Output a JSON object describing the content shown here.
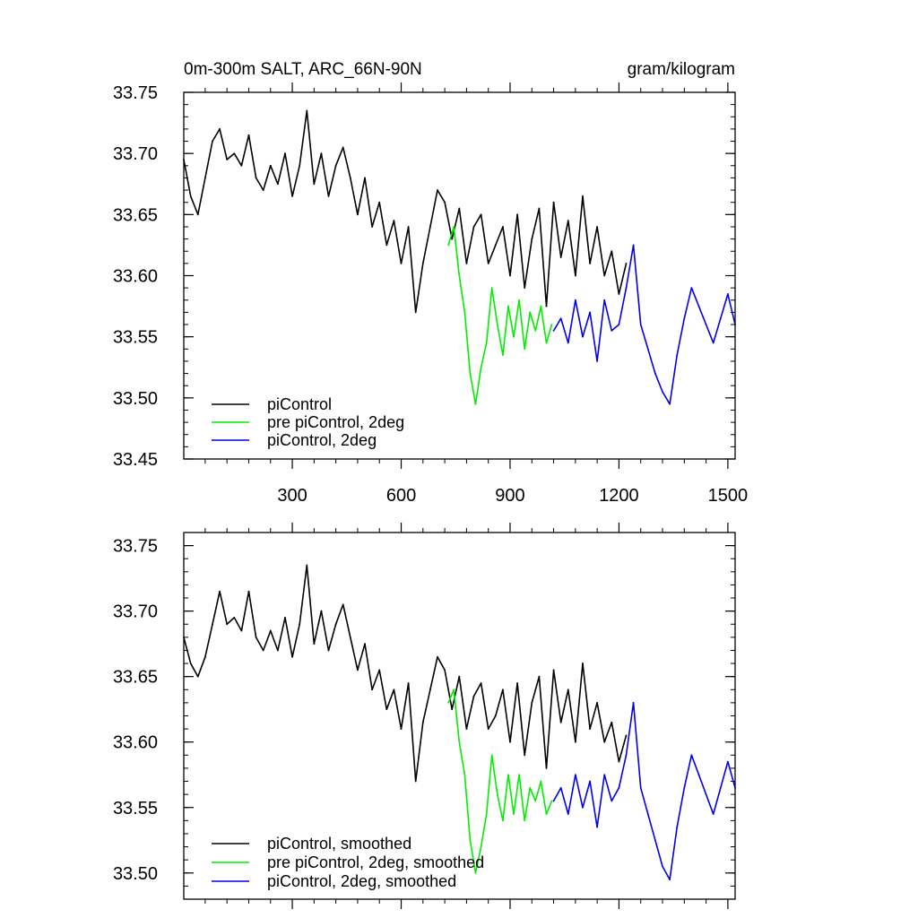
{
  "chart_data": [
    {
      "type": "line",
      "title_left": "0m-300m SALT, ARC_66N-90N",
      "title_right": "gram/kilogram",
      "xlabel": "",
      "ylabel": "",
      "xlim": [
        1,
        1520
      ],
      "ylim": [
        33.45,
        33.75
      ],
      "xticks": [
        300,
        600,
        900,
        1200,
        1500
      ],
      "xtick_labels": [
        "300",
        "600",
        "900",
        "1200",
        "1500"
      ],
      "yticks": [
        33.45,
        33.5,
        33.55,
        33.6,
        33.65,
        33.7,
        33.75
      ],
      "ytick_labels": [
        "33.45",
        "33.50",
        "33.55",
        "33.60",
        "33.65",
        "33.70",
        "33.75"
      ],
      "legend_position": "bottom-left",
      "series": [
        {
          "name": "piControl",
          "color": "#000000",
          "x": [
            1,
            20,
            40,
            60,
            80,
            100,
            120,
            140,
            160,
            180,
            200,
            220,
            240,
            260,
            280,
            300,
            320,
            340,
            360,
            380,
            400,
            420,
            440,
            460,
            480,
            500,
            520,
            540,
            560,
            580,
            600,
            620,
            640,
            660,
            680,
            700,
            720,
            740,
            760,
            780,
            800,
            820,
            840,
            860,
            880,
            900,
            920,
            940,
            960,
            980,
            1000,
            1020,
            1040,
            1060,
            1080,
            1100,
            1120,
            1140,
            1160,
            1180,
            1200,
            1220
          ],
          "values": [
            33.695,
            33.665,
            33.65,
            33.68,
            33.71,
            33.72,
            33.695,
            33.7,
            33.69,
            33.715,
            33.68,
            33.67,
            33.69,
            33.675,
            33.7,
            33.665,
            33.69,
            33.735,
            33.675,
            33.7,
            33.665,
            33.69,
            33.705,
            33.68,
            33.65,
            33.68,
            33.64,
            33.66,
            33.625,
            33.645,
            33.61,
            33.64,
            33.57,
            33.61,
            33.64,
            33.67,
            33.66,
            33.63,
            33.655,
            33.61,
            33.64,
            33.65,
            33.61,
            33.625,
            33.64,
            33.6,
            33.65,
            33.59,
            33.63,
            33.655,
            33.575,
            33.66,
            33.615,
            33.645,
            33.6,
            33.665,
            33.61,
            33.64,
            33.6,
            33.62,
            33.585,
            33.61
          ]
        },
        {
          "name": "pre piControl, 2deg",
          "color": "#00ee00",
          "x": [
            730,
            745,
            760,
            775,
            790,
            805,
            820,
            835,
            850,
            865,
            880,
            895,
            910,
            925,
            940,
            955,
            970,
            985,
            1000,
            1015
          ],
          "values": [
            33.625,
            33.64,
            33.6,
            33.57,
            33.52,
            33.495,
            33.525,
            33.545,
            33.59,
            33.56,
            33.535,
            33.575,
            33.55,
            33.58,
            33.54,
            33.57,
            33.555,
            33.575,
            33.545,
            33.56
          ]
        },
        {
          "name": "piControl, 2deg",
          "color": "#0000ee",
          "x": [
            1020,
            1040,
            1060,
            1080,
            1100,
            1120,
            1140,
            1160,
            1180,
            1200,
            1220,
            1240,
            1260,
            1280,
            1300,
            1320,
            1340,
            1360,
            1380,
            1400,
            1420,
            1440,
            1460,
            1480,
            1500,
            1520
          ],
          "values": [
            33.555,
            33.565,
            33.545,
            33.58,
            33.55,
            33.57,
            33.53,
            33.58,
            33.555,
            33.56,
            33.59,
            33.625,
            33.56,
            33.54,
            33.52,
            33.505,
            33.495,
            33.535,
            33.565,
            33.59,
            33.575,
            33.56,
            33.545,
            33.565,
            33.585,
            33.56
          ]
        }
      ]
    },
    {
      "type": "line",
      "title_left": "",
      "title_right": "",
      "xlabel": "",
      "ylabel": "",
      "xlim": [
        1,
        1520
      ],
      "ylim": [
        33.48,
        33.76
      ],
      "xticks": [
        300,
        600,
        900,
        1200,
        1500
      ],
      "xtick_labels": [],
      "yticks": [
        33.5,
        33.55,
        33.6,
        33.65,
        33.7,
        33.75
      ],
      "ytick_labels": [
        "33.50",
        "33.55",
        "33.60",
        "33.65",
        "33.70",
        "33.75"
      ],
      "legend_position": "bottom-left",
      "series": [
        {
          "name": "piControl, smoothed",
          "color": "#000000",
          "x": [
            1,
            20,
            40,
            60,
            80,
            100,
            120,
            140,
            160,
            180,
            200,
            220,
            240,
            260,
            280,
            300,
            320,
            340,
            360,
            380,
            400,
            420,
            440,
            460,
            480,
            500,
            520,
            540,
            560,
            580,
            600,
            620,
            640,
            660,
            680,
            700,
            720,
            740,
            760,
            780,
            800,
            820,
            840,
            860,
            880,
            900,
            920,
            940,
            960,
            980,
            1000,
            1020,
            1040,
            1060,
            1080,
            1100,
            1120,
            1140,
            1160,
            1180,
            1200,
            1220
          ],
          "values": [
            33.68,
            33.66,
            33.65,
            33.665,
            33.69,
            33.715,
            33.69,
            33.695,
            33.685,
            33.715,
            33.68,
            33.67,
            33.685,
            33.67,
            33.695,
            33.665,
            33.69,
            33.735,
            33.675,
            33.7,
            33.67,
            33.69,
            33.705,
            33.68,
            33.655,
            33.675,
            33.64,
            33.655,
            33.625,
            33.64,
            33.61,
            33.645,
            33.57,
            33.615,
            33.64,
            33.665,
            33.655,
            33.625,
            33.65,
            33.61,
            33.635,
            33.645,
            33.61,
            33.62,
            33.64,
            33.6,
            33.645,
            33.59,
            33.63,
            33.65,
            33.58,
            33.655,
            33.615,
            33.64,
            33.6,
            33.66,
            33.61,
            33.63,
            33.6,
            33.615,
            33.585,
            33.605
          ]
        },
        {
          "name": "pre piControl, 2deg, smoothed",
          "color": "#00ee00",
          "x": [
            730,
            745,
            760,
            775,
            790,
            805,
            820,
            835,
            850,
            865,
            880,
            895,
            910,
            925,
            940,
            955,
            970,
            985,
            1000,
            1015
          ],
          "values": [
            33.63,
            33.64,
            33.6,
            33.575,
            33.525,
            33.5,
            33.52,
            33.545,
            33.59,
            33.56,
            33.54,
            33.575,
            33.545,
            33.575,
            33.54,
            33.565,
            33.555,
            33.57,
            33.545,
            33.555
          ]
        },
        {
          "name": "piControl, 2deg, smoothed",
          "color": "#0000ee",
          "x": [
            1020,
            1040,
            1060,
            1080,
            1100,
            1120,
            1140,
            1160,
            1180,
            1200,
            1220,
            1240,
            1260,
            1280,
            1300,
            1320,
            1340,
            1360,
            1380,
            1400,
            1420,
            1440,
            1460,
            1480,
            1500,
            1520
          ],
          "values": [
            33.555,
            33.565,
            33.545,
            33.575,
            33.55,
            33.57,
            33.535,
            33.575,
            33.555,
            33.565,
            33.59,
            33.63,
            33.565,
            33.545,
            33.525,
            33.505,
            33.495,
            33.535,
            33.565,
            33.59,
            33.575,
            33.56,
            33.545,
            33.565,
            33.585,
            33.565
          ]
        }
      ]
    }
  ]
}
